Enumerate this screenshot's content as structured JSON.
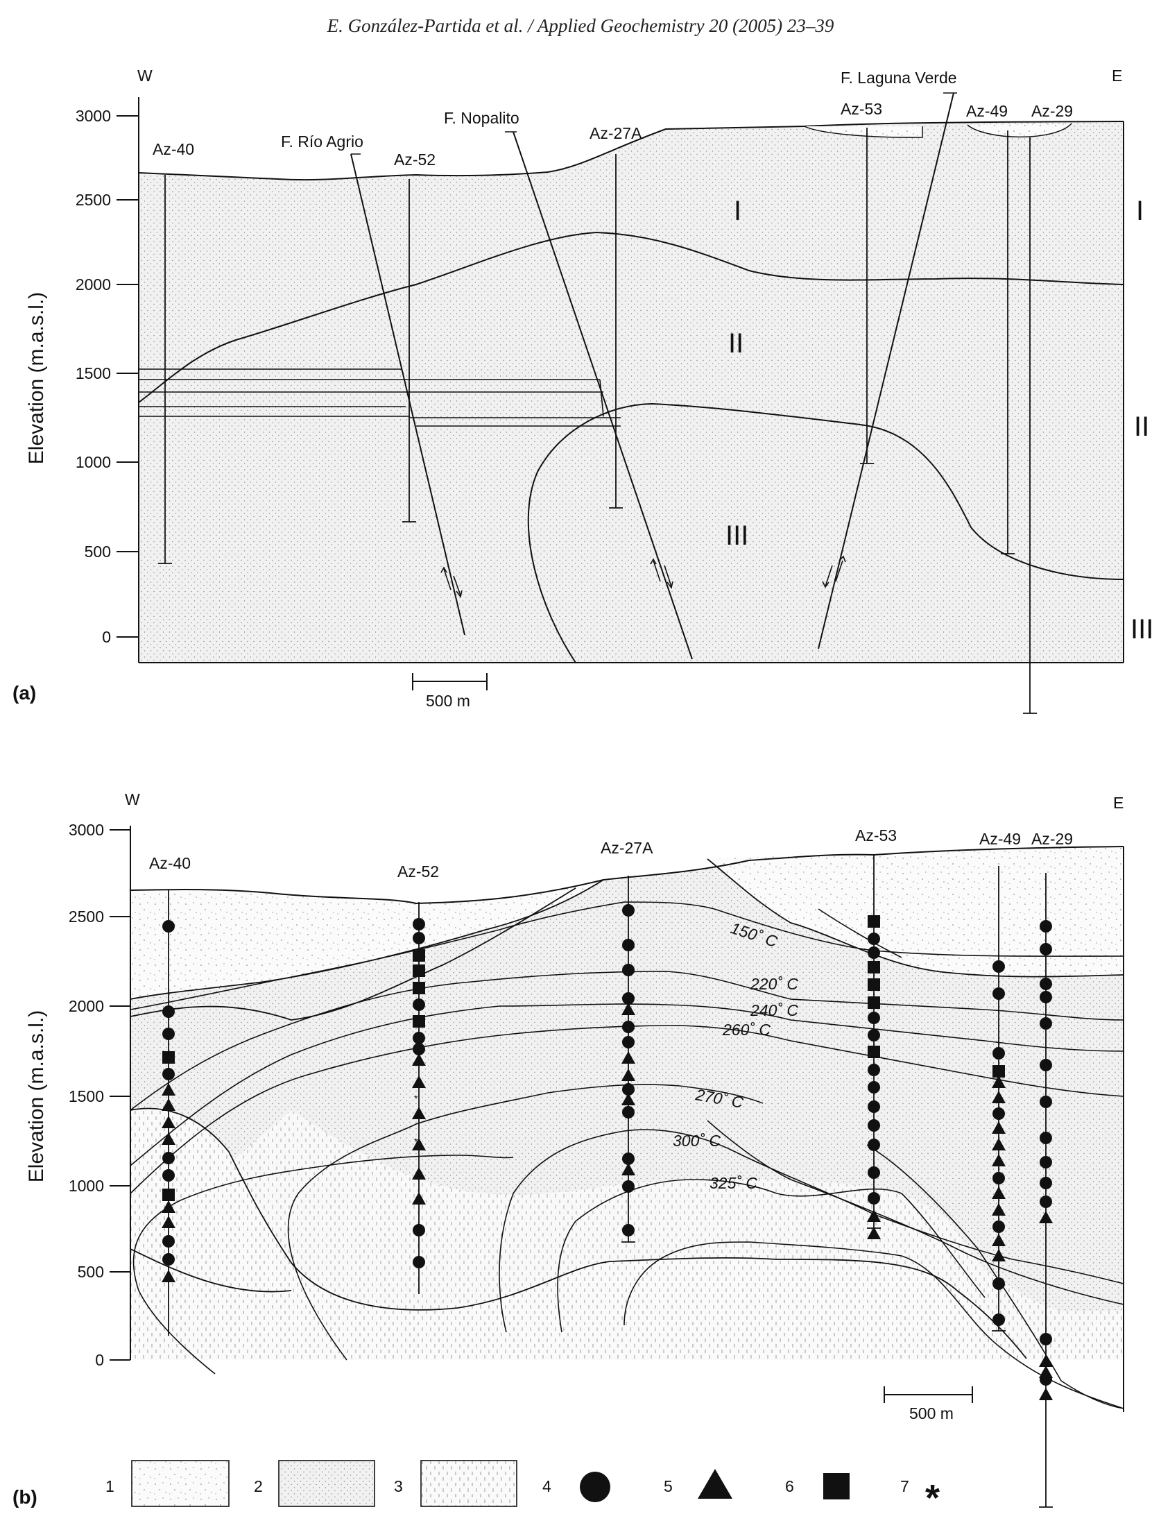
{
  "header": "E. González-Partida et al. / Applied Geochemistry 20 (2005) 23–39",
  "panel_a": {
    "label": "(a)",
    "west": "W",
    "east": "E",
    "ylabel": "Elevation (m.a.s.l.)",
    "yticks": [
      "3000",
      "2500",
      "2000",
      "1500",
      "1000",
      "500",
      "0"
    ],
    "wells": [
      "Az-40",
      "Az-52",
      "Az-27A",
      "Az-53",
      "Az-49",
      "Az-29"
    ],
    "faults": [
      "F. Río Agrio",
      "F. Nopalito",
      "F. Laguna Verde"
    ],
    "units_inside": [
      "I",
      "II",
      "III"
    ],
    "units_side": [
      "I",
      "II",
      "III"
    ],
    "scale": "500 m"
  },
  "panel_b": {
    "label": "(b)",
    "west": "W",
    "east": "E",
    "ylabel": "Elevation (m.a.s.l.)",
    "yticks": [
      "3000",
      "2500",
      "2000",
      "1500",
      "1000",
      "500",
      "0"
    ],
    "wells": [
      "Az-40",
      "Az-52",
      "Az-27A",
      "Az-53",
      "Az-49",
      "Az-29"
    ],
    "isotherms": [
      "150˚ C",
      "220˚ C",
      "240˚ C",
      "260˚ C",
      "270˚ C",
      "300˚ C",
      "325˚ C"
    ],
    "scale": "500 m"
  },
  "legend": {
    "items": [
      "1",
      "2",
      "3",
      "4",
      "5",
      "6",
      "7"
    ],
    "star": "*"
  }
}
